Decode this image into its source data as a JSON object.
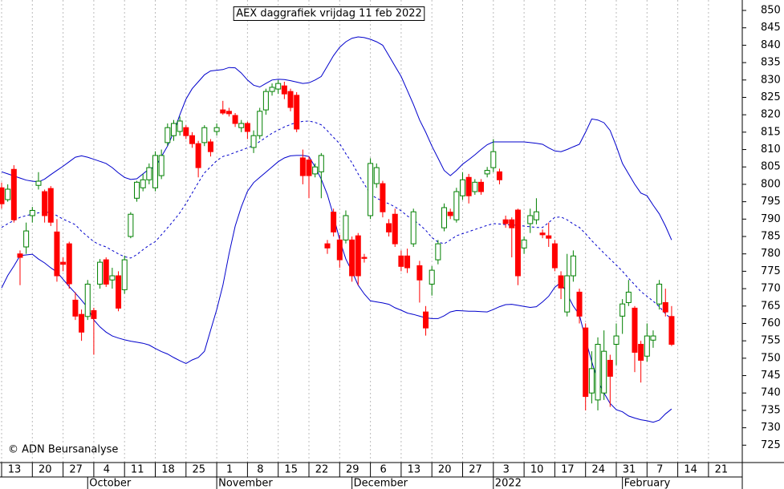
{
  "chart_data": {
    "type": "candlestick",
    "title": "AEX daggrafiek vrijdag 11 feb 2022",
    "credit": "© ADN Beursanalyse",
    "categories": [
      "13",
      null,
      null,
      null,
      null,
      "20",
      null,
      null,
      null,
      null,
      "27",
      null,
      null,
      null,
      null,
      "4",
      null,
      null,
      null,
      null,
      "11",
      null,
      null,
      null,
      null,
      "18",
      null,
      null,
      null,
      null,
      "25",
      null,
      null,
      null,
      null,
      "1",
      null,
      null,
      null,
      null,
      "8",
      null,
      null,
      null,
      null,
      "15",
      null,
      null,
      null,
      null,
      "22",
      null,
      null,
      null,
      null,
      "29",
      null,
      null,
      null,
      null,
      "6",
      null,
      null,
      null,
      null,
      "13",
      null,
      null,
      null,
      null,
      "20",
      null,
      null,
      null,
      null,
      "27",
      null,
      null,
      null,
      null,
      "3",
      null,
      null,
      null,
      null,
      "10",
      null,
      null,
      null,
      null,
      "17",
      null,
      null,
      null,
      null,
      "24",
      null,
      null,
      null,
      null,
      "31",
      null,
      null,
      null,
      null,
      "7",
      null,
      null,
      null,
      null,
      "14",
      null,
      null,
      null,
      null,
      "21",
      null,
      null,
      null,
      null,
      null
    ],
    "months": [
      {
        "index": 14,
        "label": "October"
      },
      {
        "index": 35,
        "label": "November"
      },
      {
        "index": 57,
        "label": "December"
      },
      {
        "index": 80,
        "label": "2022"
      },
      {
        "index": 101,
        "label": "February"
      }
    ],
    "open": [
      799,
      795.6,
      804.3,
      780,
      782,
      791,
      799.7,
      797.9,
      798.8,
      786.3,
      777.6,
      782.9,
      766.7,
      762.6,
      762,
      763.7,
      771.3,
      778.3,
      772.5,
      773.7,
      769.7,
      785,
      796,
      799,
      801.3,
      799,
      802.5,
      812,
      814,
      815.2,
      816.3,
      814,
      811.7,
      812,
      812.2,
      815.2,
      821.4,
      821,
      819.8,
      816.3,
      817.5,
      810.6,
      814,
      821.4,
      826.7,
      827.4,
      828.3,
      826.7,
      825.6,
      807.6,
      807,
      803,
      803.6,
      782.9,
      792,
      784,
      784,
      784,
      785.2,
      779,
      791,
      800.2,
      800.2,
      788.7,
      791.4,
      779.4,
      779.4,
      782.9,
      776.6,
      763.3,
      771.3,
      778.3,
      787.5,
      792,
      789.8,
      796.7,
      802,
      797.9,
      800.6,
      803,
      804.8,
      803.6,
      789.8,
      789.8,
      792.6,
      781.7,
      788.7,
      789.8,
      786,
      785.2,
      782.9,
      773.7,
      763.3,
      773.7,
      769,
      758.7,
      740,
      738,
      740,
      749.4,
      754,
      762.1,
      766,
      764.4,
      754,
      750.6,
      755.2,
      765.6,
      766,
      762,
      null,
      null,
      null,
      null,
      null,
      null,
      null,
      null,
      null,
      null,
      null
    ],
    "high": [
      800.5,
      800,
      805.5,
      781,
      789,
      793.5,
      803.5,
      798.5,
      799.5,
      790,
      779,
      783.5,
      769,
      764,
      772.5,
      764.5,
      778.5,
      779,
      776,
      775,
      779.5,
      792,
      801,
      803,
      806,
      809.5,
      810,
      817.5,
      818.5,
      819.5,
      817,
      815,
      812.5,
      817,
      813,
      817.5,
      824,
      822,
      820.5,
      818.5,
      818,
      815.5,
      822,
      827.5,
      829,
      830,
      829.5,
      827.5,
      826.5,
      810,
      808,
      806,
      809,
      784,
      793,
      785.5,
      792.5,
      785,
      786,
      780,
      807.5,
      806,
      801,
      790,
      793,
      781,
      781.5,
      793,
      778,
      765,
      776.5,
      784,
      794.5,
      793,
      799,
      803.5,
      803,
      801.5,
      801.5,
      805,
      813,
      804.5,
      791,
      790.5,
      793,
      785,
      793,
      796,
      787,
      789,
      784,
      775,
      780,
      781,
      770,
      760,
      752,
      756,
      758,
      751,
      760,
      767,
      772.5,
      765,
      755,
      760,
      758,
      772.5,
      770,
      765,
      null,
      null,
      null,
      null,
      null,
      null,
      null,
      null,
      null,
      null,
      null
    ],
    "low": [
      793,
      795,
      789,
      771,
      780,
      789,
      798.5,
      789,
      788,
      772,
      775,
      770,
      761,
      755,
      761,
      751,
      770,
      770.5,
      770,
      763.5,
      768.5,
      784.5,
      795,
      798,
      800,
      798,
      801.5,
      811,
      812.5,
      814,
      813,
      810.5,
      802,
      811,
      808,
      814,
      820,
      819.5,
      816.5,
      815,
      813,
      809,
      813,
      820,
      825.5,
      826,
      824.5,
      821,
      815,
      800,
      796,
      802,
      796,
      780,
      785,
      776,
      783,
      772,
      771,
      777.5,
      790,
      799,
      790.5,
      785,
      782,
      775,
      774.5,
      782,
      766,
      756.5,
      768,
      777,
      786.5,
      790,
      789,
      795.5,
      794.5,
      797,
      797,
      802,
      803.5,
      800,
      787.5,
      779,
      771,
      780,
      786,
      788.5,
      784.5,
      782,
      775,
      767,
      762,
      772,
      760,
      735,
      737,
      735,
      738,
      736,
      748,
      757,
      765,
      746,
      743,
      749,
      753,
      764,
      762,
      753.5,
      null,
      null,
      null,
      null,
      null,
      null,
      null,
      null,
      null,
      null,
      null
    ],
    "close": [
      794.4,
      798.6,
      789.8,
      779,
      786.6,
      792.5,
      800.9,
      791,
      789.1,
      773.7,
      777,
      771.4,
      762.1,
      757.5,
      771.3,
      761.4,
      777.6,
      771.3,
      773.7,
      764.4,
      778.3,
      791.4,
      800.6,
      801.3,
      804.8,
      808.3,
      808.3,
      816.3,
      817.5,
      818.2,
      814,
      811.7,
      804.8,
      816.3,
      809.4,
      816.3,
      820.5,
      820.3,
      817.5,
      817.5,
      815.2,
      814,
      821,
      826.7,
      827.9,
      829,
      826,
      822.1,
      815.9,
      802.5,
      802.5,
      805,
      808.3,
      781.7,
      786.3,
      778.3,
      791,
      773.7,
      773.7,
      778.7,
      806,
      804.8,
      792.1,
      786.3,
      782.9,
      776.4,
      776,
      792.1,
      772.5,
      758.7,
      775.3,
      782.9,
      793.3,
      791,
      797.9,
      801.3,
      796.7,
      800.6,
      797.9,
      804,
      809.4,
      801.3,
      788.7,
      787.5,
      773.7,
      784,
      791,
      792.1,
      785.5,
      784.5,
      776,
      770.2,
      773.7,
      779.4,
      762.1,
      739,
      747,
      754,
      752,
      744.8,
      756.4,
      765.6,
      769,
      751.7,
      749.4,
      756.4,
      756.4,
      771.3,
      763.3,
      754,
      null,
      null,
      null,
      null,
      null,
      null,
      null,
      null,
      null,
      null,
      null
    ],
    "up_color": "#008000",
    "down_color": "#ff0000",
    "bands": {
      "color": "#0000cc",
      "upper": [
        803.6,
        803,
        802.4,
        801.8,
        801.2,
        800.9,
        800.7,
        801.5,
        802.8,
        804,
        805.2,
        806.5,
        807.8,
        808.2,
        807.8,
        807.2,
        806.6,
        806,
        804.8,
        803.3,
        802,
        801.4,
        801.6,
        803,
        804.4,
        805,
        808,
        811,
        815,
        820,
        824.5,
        827.5,
        829.5,
        831.5,
        832.6,
        832.8,
        833,
        833.6,
        833.5,
        832,
        830,
        828.5,
        828,
        829,
        830,
        830.2,
        830.1,
        829.8,
        829.4,
        829,
        829.2,
        830,
        831,
        834,
        837,
        839.4,
        841,
        842,
        842.4,
        842.2,
        841.7,
        841,
        840,
        837,
        834,
        831,
        827,
        823,
        818.5,
        815,
        811,
        807.5,
        804,
        802.5,
        804,
        805.8,
        807.1,
        808.5,
        810,
        811.4,
        812.2,
        812.2,
        812.2,
        812.2,
        812.2,
        812.2,
        812,
        811.8,
        811.5,
        810.5,
        809.6,
        809.4,
        810,
        810.8,
        811.5,
        815,
        818.8,
        818.5,
        817.7,
        815.5,
        811,
        806,
        803,
        800,
        797.5,
        796.7,
        794,
        791.5,
        788,
        784,
        null,
        null,
        null,
        null,
        null,
        null,
        null,
        null,
        null,
        null,
        null
      ],
      "middle": [
        787.6,
        788.7,
        789.6,
        790.5,
        791,
        791.4,
        791.8,
        792.1,
        791.8,
        791,
        790,
        789.2,
        788.4,
        786.5,
        785,
        783.5,
        782.6,
        782,
        781,
        780,
        779.2,
        778.8,
        779.8,
        781.2,
        782.5,
        783.5,
        785.5,
        787.5,
        789.6,
        791.8,
        794.5,
        797.5,
        800.5,
        803.3,
        805,
        806.8,
        808,
        808.5,
        809.2,
        809.8,
        810.5,
        811.2,
        812.3,
        813.5,
        814.7,
        815.6,
        816.5,
        817.2,
        817.8,
        818.1,
        818.2,
        817.8,
        817.1,
        815.4,
        813.5,
        811.7,
        808.8,
        806.2,
        803,
        800.1,
        797.2,
        796,
        795.2,
        794.4,
        793.5,
        792.4,
        790.9,
        789.8,
        788.4,
        786.8,
        784.7,
        783.4,
        782.9,
        784,
        785.2,
        785.8,
        786.4,
        787,
        787.6,
        788.2,
        788.7,
        788.6,
        788.4,
        788.3,
        788.2,
        788,
        787.8,
        787.6,
        787.6,
        789,
        790.5,
        790.6,
        789.8,
        788.6,
        787.6,
        785.8,
        783.8,
        782,
        780.2,
        778.5,
        776.8,
        775,
        773,
        771.1,
        769.2,
        767.8,
        766.4,
        764.8,
        762.8,
        761.2,
        null,
        null,
        null,
        null,
        null,
        null,
        null,
        null,
        null,
        null,
        null
      ],
      "lower": [
        770.2,
        773.8,
        776.5,
        779.5,
        779.7,
        779.9,
        778.5,
        777.4,
        776,
        774.8,
        772.7,
        770.6,
        768.7,
        766.7,
        764.5,
        761,
        759,
        757.5,
        756.4,
        755.8,
        755.3,
        754.9,
        754.6,
        754.3,
        753.8,
        752.8,
        751.9,
        751.2,
        750.2,
        749.3,
        748.5,
        749.5,
        750.2,
        752,
        758,
        764,
        771,
        780,
        788,
        793.5,
        798,
        800.5,
        802,
        803.5,
        805,
        806.5,
        807.6,
        808.2,
        808.3,
        808.3,
        808,
        805,
        801.5,
        797,
        791,
        784,
        778.5,
        775,
        771,
        768.5,
        766.5,
        766.2,
        765.9,
        765.5,
        764.5,
        763.8,
        763,
        762.6,
        762.1,
        761.6,
        761.4,
        761.4,
        762.2,
        763.3,
        763.7,
        763.6,
        763.5,
        763.5,
        763.4,
        763.3,
        764,
        764.8,
        765.4,
        765.5,
        765.2,
        764.9,
        764.6,
        764.8,
        766.2,
        767.8,
        770.4,
        771.8,
        768.5,
        765,
        762.5,
        755.5,
        749,
        743.5,
        740,
        737,
        735.2,
        734.6,
        733.4,
        732.8,
        732.3,
        732,
        731.6,
        732.2,
        734,
        735.4,
        null,
        null,
        null,
        null,
        null,
        null,
        null,
        null,
        null,
        null,
        null
      ]
    },
    "ylim": [
      720,
      853
    ],
    "yticks": [
      725,
      730,
      735,
      740,
      745,
      750,
      755,
      760,
      765,
      770,
      775,
      780,
      785,
      790,
      795,
      800,
      805,
      810,
      815,
      820,
      825,
      830,
      835,
      840,
      845,
      850
    ],
    "grid": true
  }
}
